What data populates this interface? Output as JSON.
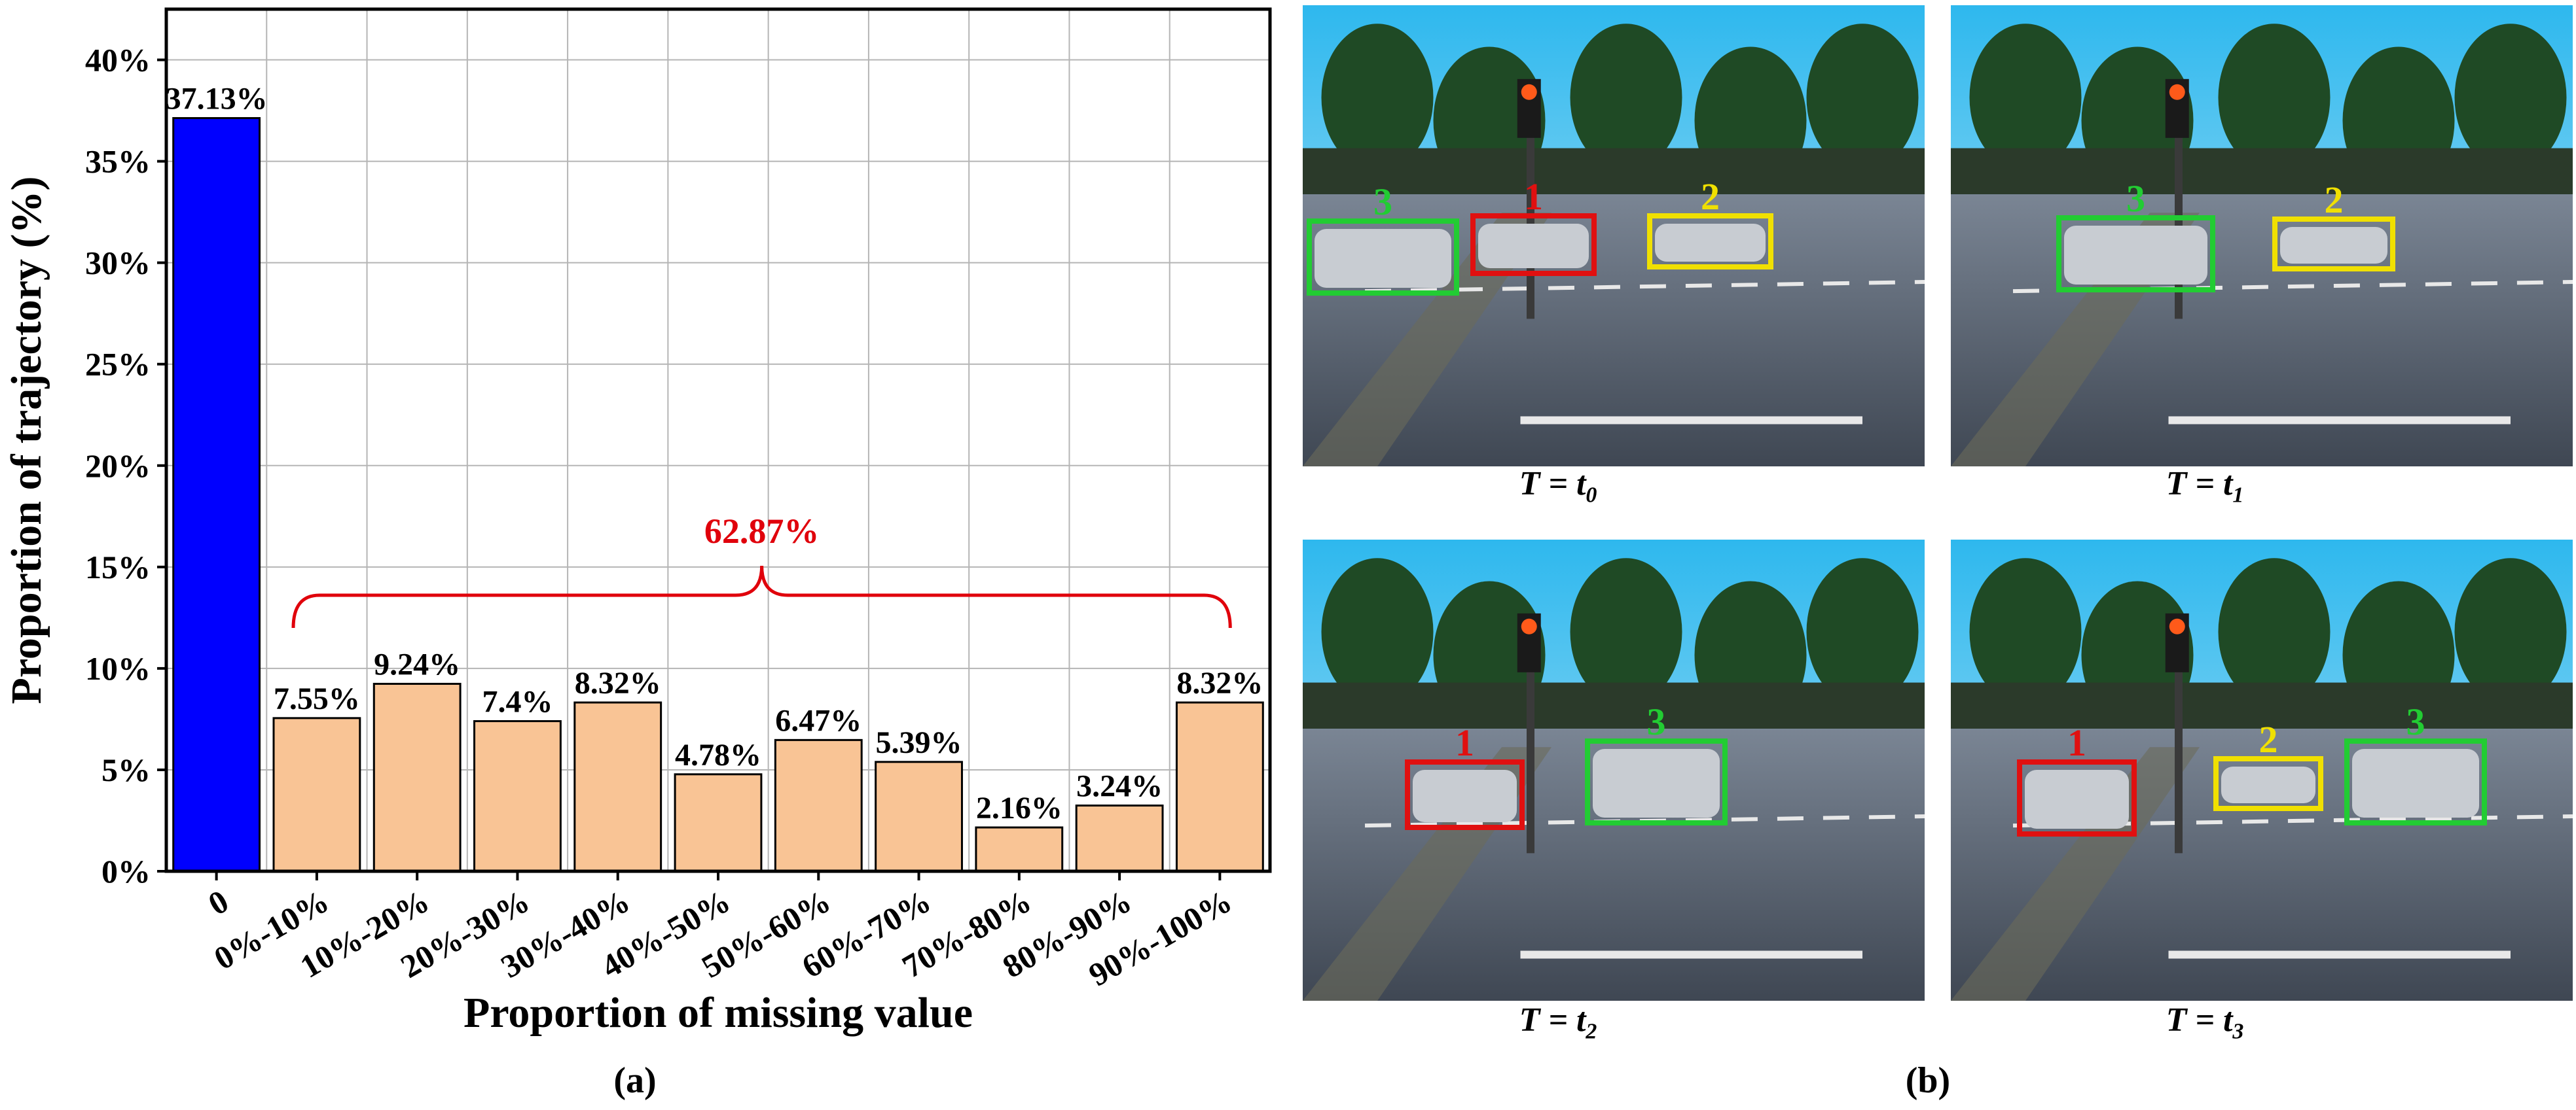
{
  "chart_data": {
    "type": "bar",
    "categories": [
      "0",
      "0%-10%",
      "10%-20%",
      "20%-30%",
      "30%-40%",
      "40%-50%",
      "50%-60%",
      "60%-70%",
      "70%-80%",
      "80%-90%",
      "90%-100%"
    ],
    "values": [
      37.13,
      7.55,
      9.24,
      7.4,
      8.32,
      4.78,
      6.47,
      5.39,
      2.16,
      3.24,
      8.32
    ],
    "data_labels": [
      "37.13%",
      "7.55%",
      "9.24%",
      "7.4%",
      "8.32%",
      "4.78%",
      "6.47%",
      "5.39%",
      "2.16%",
      "3.24%",
      "8.32%"
    ],
    "ylim": [
      0,
      42.5
    ],
    "yticks": [
      0,
      5,
      10,
      15,
      20,
      25,
      30,
      35,
      40
    ],
    "ytick_labels": [
      "0%",
      "5%",
      "10%",
      "15%",
      "20%",
      "25%",
      "30%",
      "35%",
      "40%"
    ],
    "xlabel": "Proportion of missing value",
    "ylabel": "Proportion of trajectory (%)",
    "grid": true,
    "bar_colors": [
      "#0000ff",
      "#f9c495",
      "#f9c495",
      "#f9c495",
      "#f9c495",
      "#f9c495",
      "#f9c495",
      "#f9c495",
      "#f9c495",
      "#f9c495",
      "#f9c495"
    ],
    "annotation": {
      "text": "62.87%",
      "from_category": "0%-10%",
      "to_category": "90%-100%",
      "color": "#e0000b"
    }
  },
  "captions": {
    "a": "(a)",
    "b": "(b)"
  },
  "frames": [
    {
      "base": "T = t",
      "sub": "0",
      "boxes": [
        {
          "id": "3",
          "color": "#22cc33"
        },
        {
          "id": "1",
          "color": "#e01010"
        },
        {
          "id": "2",
          "color": "#f0e000"
        }
      ]
    },
    {
      "base": "T = t",
      "sub": "1",
      "boxes": [
        {
          "id": "3",
          "color": "#22cc33"
        },
        {
          "id": "2",
          "color": "#f0e000"
        }
      ]
    },
    {
      "base": "T = t",
      "sub": "2",
      "boxes": [
        {
          "id": "1",
          "color": "#e01010"
        },
        {
          "id": "3",
          "color": "#22cc33"
        }
      ]
    },
    {
      "base": "T = t",
      "sub": "3",
      "boxes": [
        {
          "id": "1",
          "color": "#e01010"
        },
        {
          "id": "2",
          "color": "#f0e000"
        },
        {
          "id": "3",
          "color": "#22cc33"
        }
      ]
    }
  ]
}
